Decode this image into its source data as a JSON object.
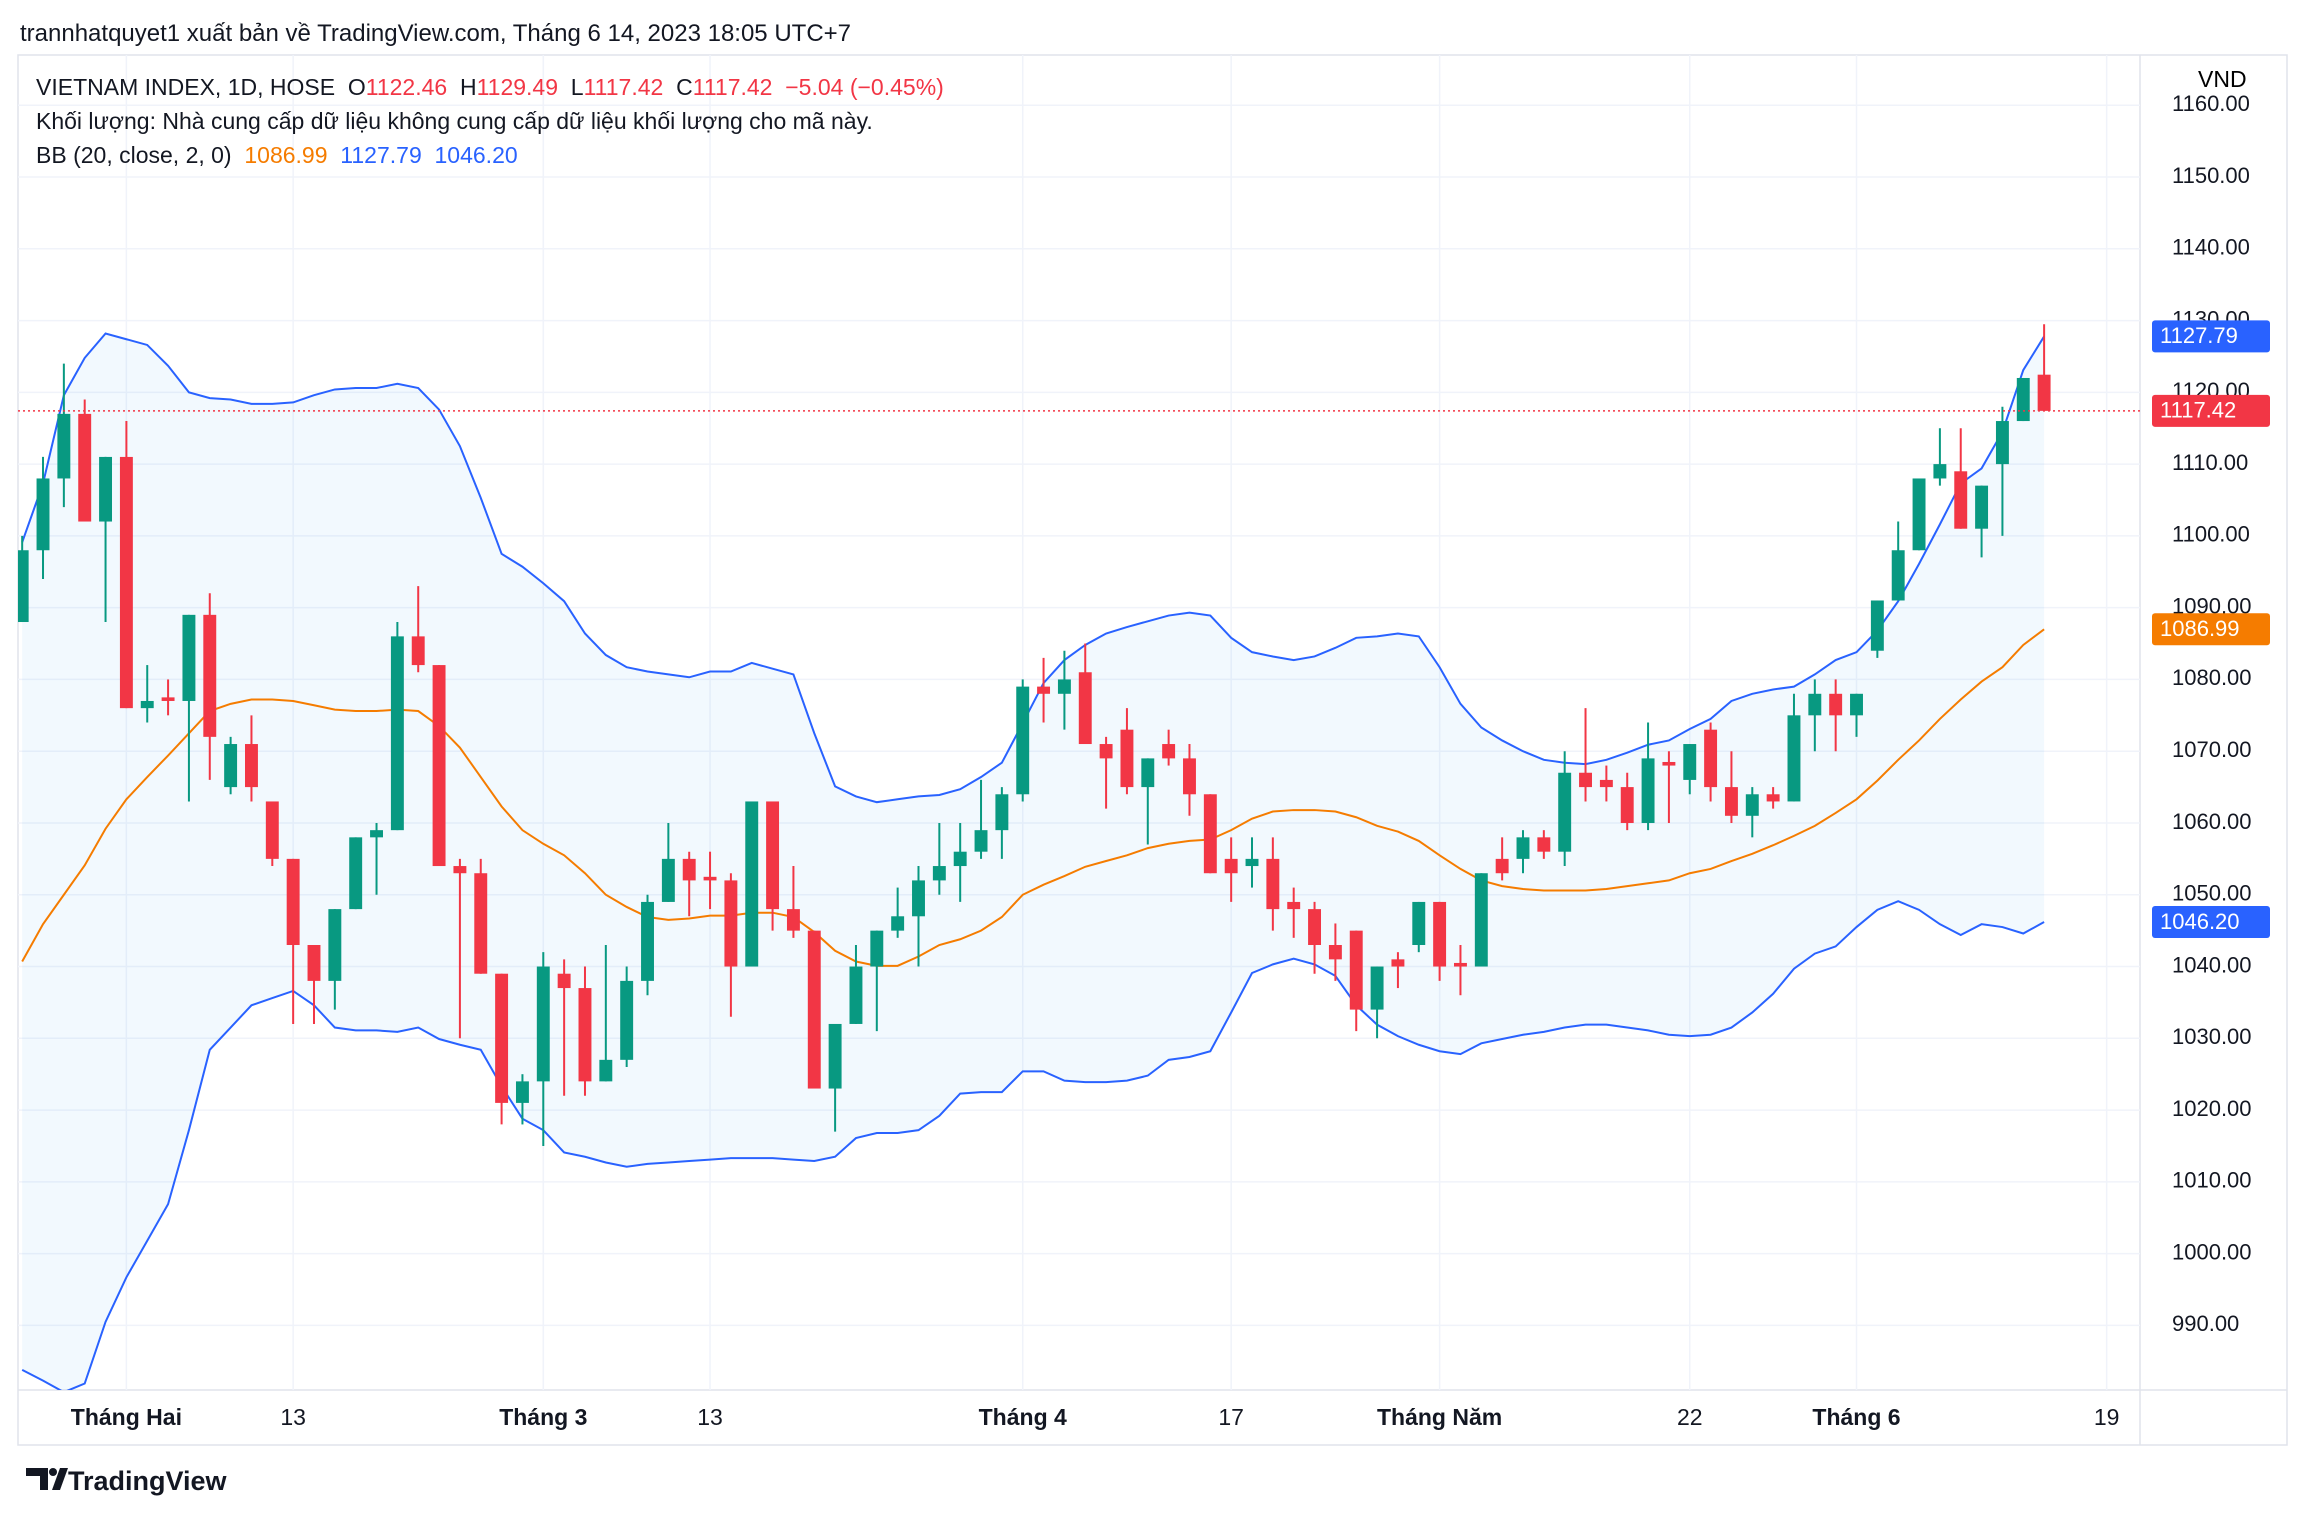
{
  "header": {
    "text": "trannhatquyet1 xuất bản về TradingView.com, Tháng 6 14, 2023 18:05 UTC+7"
  },
  "legend": {
    "symbol": "VIETNAM INDEX, 1D, HOSE",
    "o": "O",
    "h": "H",
    "l": "L",
    "c": "C",
    "change": "−5.04 (−0.45%)",
    "volume_note": "Khối lượng: Nhà cung cấp dữ liệu không cung cấp dữ liệu khối lượng cho mã này."
  },
  "footer": {
    "brand": "TradingView"
  },
  "chart_data": {
    "type": "candlestick",
    "currency": "VND",
    "up_color": "#089981",
    "down_color": "#f23645",
    "xlim": [
      -0.2,
      101.6
    ],
    "ylim": [
      981,
      1167
    ],
    "xticks": [
      {
        "value": 5,
        "label": "Tháng Hai"
      },
      13,
      {
        "value": 25,
        "label": "Tháng 3"
      },
      {
        "value": 33,
        "label": "13"
      },
      {
        "value": 48,
        "label": "Tháng 4"
      },
      {
        "value": 58,
        "label": "17"
      },
      {
        "value": 68,
        "label": "Tháng Năm"
      },
      {
        "value": 80,
        "label": "22"
      },
      {
        "value": 88,
        "label": "Tháng 6"
      },
      {
        "value": 100,
        "label": "19"
      }
    ],
    "yticks": [
      {
        "value": 990,
        "label": "990.00"
      },
      {
        "value": 1000,
        "label": "1000.00"
      },
      {
        "value": 1010,
        "label": "1010.00"
      },
      {
        "value": 1020,
        "label": "1020.00"
      },
      {
        "value": 1030,
        "label": "1030.00"
      },
      {
        "value": 1040,
        "label": "1040.00"
      },
      {
        "value": 1050,
        "label": "1050.00"
      },
      {
        "value": 1060,
        "label": "1060.00"
      },
      {
        "value": 1070,
        "label": "1070.00"
      },
      {
        "value": 1080,
        "label": "1080.00"
      },
      {
        "value": 1090,
        "label": "1090.00"
      },
      {
        "value": 1100,
        "label": "1100.00"
      },
      {
        "value": 1110,
        "label": "1110.00"
      },
      {
        "value": 1120,
        "label": "1120.00"
      },
      {
        "value": 1130,
        "label": "1130.00"
      },
      {
        "value": 1140,
        "label": "1140.00"
      },
      {
        "value": 1150,
        "label": "1150.00"
      },
      {
        "value": 1160,
        "label": "1160.00"
      }
    ],
    "grid": true,
    "open": [
      1088,
      1098,
      1108,
      1117,
      1102,
      1111,
      1076,
      1077.5,
      1077,
      1089,
      1065,
      1071,
      1063,
      1055,
      1043,
      1038,
      1048,
      1058,
      1059,
      1086,
      1082,
      1054,
      1053,
      1039,
      1021,
      1024,
      1039,
      1037,
      1024,
      1027,
      1038,
      1049,
      1055,
      1052.5,
      1052,
      1040,
      1063,
      1048,
      1045,
      1023,
      1032,
      1040,
      1045,
      1047,
      1052,
      1054,
      1056,
      1059,
      1064,
      1079,
      1078,
      1081,
      1071,
      1073,
      1065,
      1071,
      1069,
      1064,
      1055,
      1054,
      1055,
      1049,
      1048,
      1043,
      1045,
      1034,
      1041,
      1043,
      1049,
      1040.5,
      1040,
      1055,
      1055,
      1058,
      1056,
      1067,
      1066,
      1065,
      1060,
      1068.5,
      1066,
      1073,
      1065,
      1061,
      1064,
      1063,
      1075,
      1078,
      1075,
      1084,
      1091,
      1098,
      1108,
      1109,
      1101,
      1110,
      1116,
      1122.46
    ],
    "high": [
      1100,
      1111,
      1124,
      1119,
      1111,
      1116,
      1082,
      1080,
      1089,
      1092,
      1072,
      1075,
      1063,
      1055,
      1043,
      1048,
      1058,
      1060,
      1088,
      1093,
      1082,
      1055,
      1055,
      1039,
      1025,
      1042,
      1041,
      1040,
      1043,
      1040,
      1050,
      1060,
      1056,
      1056,
      1053,
      1063,
      1063,
      1054,
      1045,
      1032,
      1043,
      1045,
      1051,
      1054,
      1060,
      1060,
      1066,
      1065,
      1080,
      1083,
      1084,
      1085,
      1072,
      1076,
      1069,
      1073,
      1071,
      1064,
      1058,
      1058,
      1058,
      1051,
      1049,
      1046,
      1045,
      1040,
      1042,
      1049,
      1049,
      1043,
      1053,
      1058,
      1059,
      1059,
      1070,
      1076,
      1068,
      1067,
      1074,
      1070,
      1071,
      1074,
      1070,
      1065,
      1065,
      1078,
      1080,
      1080,
      1078,
      1091,
      1102,
      1108,
      1115,
      1115,
      1107,
      1118,
      1122,
      1129.49
    ],
    "low": [
      1088,
      1094,
      1104,
      1102,
      1088,
      1076,
      1074,
      1075,
      1063,
      1066,
      1064,
      1063,
      1054,
      1032,
      1032,
      1034,
      1048,
      1050,
      1059,
      1081,
      1054,
      1030,
      1039,
      1018,
      1018,
      1015,
      1022,
      1022,
      1024,
      1026,
      1036,
      1049,
      1047,
      1048,
      1033,
      1040,
      1045,
      1044,
      1023,
      1017,
      1032,
      1031,
      1044,
      1040,
      1050,
      1049,
      1055,
      1055,
      1063,
      1074,
      1073,
      1071,
      1062,
      1064,
      1057,
      1068,
      1061,
      1053,
      1049,
      1051,
      1045,
      1044,
      1039,
      1038,
      1031,
      1030,
      1037,
      1042,
      1038,
      1036,
      1040,
      1052,
      1053,
      1055,
      1054,
      1063,
      1063,
      1059,
      1059,
      1060,
      1064,
      1063,
      1060,
      1058,
      1062,
      1063,
      1070,
      1070,
      1072,
      1083,
      1091,
      1098,
      1107,
      1101,
      1097,
      1100,
      1116,
      1117.42
    ],
    "close": [
      1098,
      1108,
      1117,
      1102,
      1111,
      1076,
      1077,
      1077,
      1089,
      1072,
      1071,
      1065,
      1055,
      1043,
      1038,
      1048,
      1058,
      1059,
      1086,
      1082,
      1054,
      1053,
      1039,
      1021,
      1024,
      1040,
      1037,
      1024,
      1027,
      1038,
      1049,
      1055,
      1052,
      1052,
      1040,
      1063,
      1048,
      1045,
      1023,
      1032,
      1040,
      1045,
      1047,
      1052,
      1054,
      1056,
      1059,
      1064,
      1079,
      1078,
      1080,
      1071,
      1069,
      1065,
      1069,
      1069,
      1064,
      1053,
      1053,
      1055,
      1048,
      1048,
      1043,
      1041,
      1034,
      1040,
      1040,
      1049,
      1040,
      1040,
      1053,
      1053,
      1058,
      1056,
      1067,
      1065,
      1065,
      1060,
      1069,
      1068,
      1071,
      1065,
      1061,
      1064,
      1063,
      1075,
      1078,
      1075,
      1078,
      1091,
      1098,
      1108,
      1110,
      1101,
      1107,
      1116,
      1122,
      1117.42
    ],
    "bb": {
      "label": "BB (20, close, 2, 0)",
      "basis_color": "#f57c00",
      "band_color": "#2962ff",
      "fill": "rgba(33,150,243,0.06)",
      "lower_last_label": "1046.20",
      "basis": [
        1040.7,
        1045.9,
        1050,
        1054.1,
        1059.2,
        1063.3,
        1066.4,
        1069.4,
        1072.5,
        1075.6,
        1076.6,
        1077.2,
        1077.2,
        1077,
        1076.4,
        1075.8,
        1075.6,
        1075.6,
        1075.8,
        1075.6,
        1073.5,
        1070.5,
        1066.4,
        1062.3,
        1059,
        1057.1,
        1055.5,
        1053,
        1050,
        1048.3,
        1046.9,
        1046.5,
        1046.7,
        1047.1,
        1047.1,
        1047.5,
        1047.5,
        1046.9,
        1044.8,
        1042.2,
        1040.7,
        1040.1,
        1040.1,
        1041.4,
        1043,
        1043.8,
        1045,
        1046.9,
        1050,
        1051.4,
        1052.6,
        1053.9,
        1054.7,
        1055.5,
        1056.5,
        1057.1,
        1057.5,
        1057.7,
        1059,
        1060.6,
        1061.6,
        1061.8,
        1061.8,
        1061.6,
        1060.8,
        1059.6,
        1058.8,
        1057.5,
        1055.5,
        1053.6,
        1052,
        1051.2,
        1050.8,
        1050.6,
        1050.6,
        1050.6,
        1050.8,
        1051.2,
        1051.6,
        1052,
        1053,
        1053.6,
        1054.7,
        1055.7,
        1056.9,
        1058.2,
        1059.6,
        1061.4,
        1063.3,
        1065.9,
        1068.8,
        1071.5,
        1074.5,
        1077.2,
        1079.7,
        1081.7,
        1084.8,
        1086.99
      ],
      "upper": [
        1099.1,
        1107.3,
        1119.6,
        1124.8,
        1128.2,
        1127.4,
        1126.6,
        1123.7,
        1120,
        1119.2,
        1119,
        1118.4,
        1118.4,
        1118.6,
        1119.6,
        1120.4,
        1120.6,
        1120.6,
        1121.2,
        1120.6,
        1117.6,
        1112.5,
        1105.3,
        1097.5,
        1095.7,
        1093.4,
        1090.9,
        1086.4,
        1083.4,
        1081.7,
        1081.1,
        1080.7,
        1080.3,
        1081.1,
        1081.1,
        1082.3,
        1081.5,
        1080.7,
        1072.5,
        1065.1,
        1063.7,
        1062.9,
        1063.3,
        1063.7,
        1063.9,
        1064.7,
        1066.4,
        1068.4,
        1073.9,
        1079.5,
        1082.7,
        1084.8,
        1086.4,
        1087.3,
        1088.1,
        1088.9,
        1089.3,
        1088.9,
        1085.8,
        1083.8,
        1083.2,
        1082.7,
        1083.2,
        1084.4,
        1085.8,
        1086,
        1086.4,
        1086,
        1081.7,
        1076.6,
        1073.3,
        1071.5,
        1070,
        1068.8,
        1068.4,
        1068.2,
        1068.8,
        1069.8,
        1070.9,
        1071.5,
        1073.1,
        1074.5,
        1077,
        1078,
        1078.6,
        1079,
        1080.7,
        1082.7,
        1083.8,
        1086.8,
        1090.9,
        1096.1,
        1101.6,
        1107.3,
        1109.4,
        1114.5,
        1123.1,
        1127.79
      ],
      "lower": [
        983.8,
        982.3,
        980.7,
        981.9,
        990.5,
        996.7,
        1001.8,
        1006.9,
        1017.2,
        1028.4,
        1031.5,
        1034.6,
        1035.6,
        1036.6,
        1034.6,
        1031.5,
        1031.1,
        1031.1,
        1030.9,
        1031.5,
        1029.9,
        1029.1,
        1028.4,
        1023.3,
        1018.8,
        1017.2,
        1014.1,
        1013.5,
        1012.7,
        1012.1,
        1012.5,
        1012.7,
        1012.9,
        1013.1,
        1013.3,
        1013.3,
        1013.3,
        1013.1,
        1012.9,
        1013.5,
        1016.1,
        1016.8,
        1016.8,
        1017.2,
        1019.2,
        1022.3,
        1022.5,
        1022.5,
        1025.4,
        1025.4,
        1024.1,
        1023.9,
        1023.9,
        1024.1,
        1024.8,
        1027,
        1027.4,
        1028.2,
        1033.6,
        1039.1,
        1040.3,
        1041.1,
        1040.3,
        1038.7,
        1034.6,
        1031.9,
        1030.3,
        1029.1,
        1028.2,
        1027.8,
        1029.3,
        1029.9,
        1030.5,
        1030.9,
        1031.5,
        1031.9,
        1031.9,
        1031.5,
        1031.1,
        1030.5,
        1030.3,
        1030.5,
        1031.5,
        1033.6,
        1036.2,
        1039.7,
        1041.8,
        1042.8,
        1045.5,
        1047.9,
        1049.1,
        1047.9,
        1045.9,
        1044.4,
        1045.9,
        1045.5,
        1044.6,
        1046.2
      ]
    }
  }
}
